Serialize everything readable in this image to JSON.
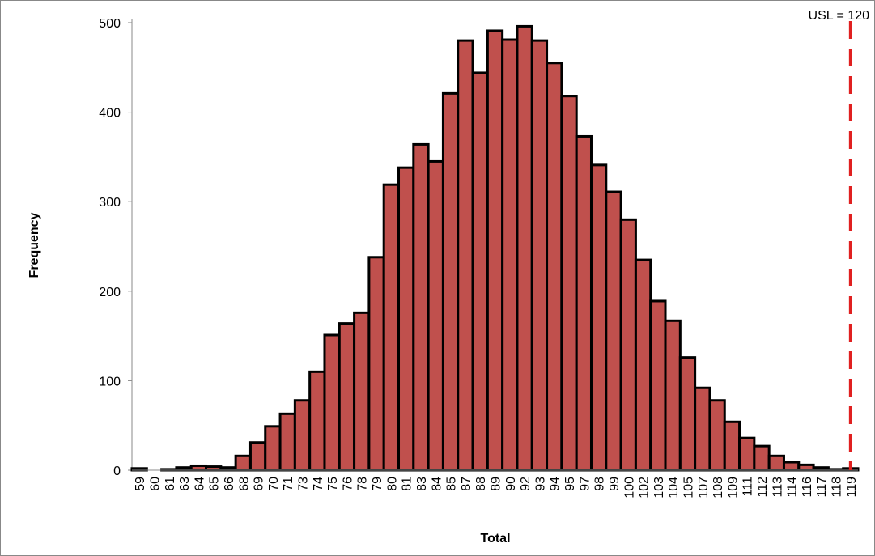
{
  "chart_data": {
    "type": "bar",
    "x_label": "Total",
    "y_label": "Frequency",
    "annotation": "USL = 120",
    "categories": [
      "59",
      "60",
      "61",
      "63",
      "64",
      "65",
      "66",
      "68",
      "69",
      "70",
      "71",
      "73",
      "74",
      "75",
      "76",
      "78",
      "79",
      "80",
      "81",
      "83",
      "84",
      "85",
      "87",
      "88",
      "89",
      "90",
      "92",
      "93",
      "94",
      "95",
      "97",
      "98",
      "99",
      "100",
      "102",
      "103",
      "104",
      "105",
      "107",
      "108",
      "109",
      "111",
      "112",
      "113",
      "114",
      "116",
      "117",
      "118",
      "119"
    ],
    "values": [
      2,
      0,
      1,
      3,
      5,
      4,
      3,
      16,
      31,
      49,
      63,
      78,
      110,
      151,
      164,
      176,
      238,
      319,
      338,
      364,
      345,
      421,
      480,
      444,
      491,
      481,
      496,
      480,
      455,
      418,
      373,
      341,
      311,
      280,
      235,
      189,
      167,
      126,
      92,
      78,
      54,
      36,
      27,
      16,
      9,
      6,
      3,
      1,
      2
    ],
    "color": "#c0504d",
    "ylim": [
      0,
      500
    ],
    "yticks": [
      0,
      100,
      200,
      300,
      400,
      500
    ]
  }
}
